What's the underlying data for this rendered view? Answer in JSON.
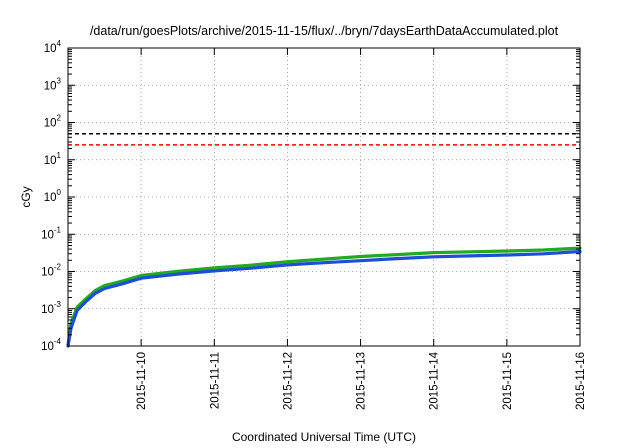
{
  "chart_data": {
    "type": "line",
    "title": "/data/run/goesPlots/archive/2015-11-15/flux/../bryn/7daysEarthDataAccumulated.plot",
    "xlabel": "Coordinated Universal Time (UTC)",
    "ylabel": "cGy",
    "yscale": "log",
    "ylim": [
      0.0001,
      10000
    ],
    "xlim": [
      "2015-11-09T00:00",
      "2015-11-16T00:00"
    ],
    "x_ticks": [
      "2015-11-10",
      "2015-11-11",
      "2015-11-12",
      "2015-11-13",
      "2015-11-14",
      "2015-11-15",
      "2015-11-16"
    ],
    "y_ticks": [
      {
        "base": "10",
        "exp": "-4",
        "value": 0.0001
      },
      {
        "base": "10",
        "exp": "-3",
        "value": 0.001
      },
      {
        "base": "10",
        "exp": "-2",
        "value": 0.01
      },
      {
        "base": "10",
        "exp": "-1",
        "value": 0.1
      },
      {
        "base": "10",
        "exp": "0",
        "value": 1
      },
      {
        "base": "10",
        "exp": "1",
        "value": 10
      },
      {
        "base": "10",
        "exp": "2",
        "value": 100
      },
      {
        "base": "10",
        "exp": "3",
        "value": 1000
      },
      {
        "base": "10",
        "exp": "4",
        "value": 10000
      }
    ],
    "grid": true,
    "thresholds": [
      {
        "value": 50,
        "color": "#000000",
        "style": "dashed"
      },
      {
        "value": 25,
        "color": "#ff0000",
        "style": "dashed"
      }
    ],
    "series": [
      {
        "color": "#22aa22",
        "x": [
          "2015-11-09T00:00",
          "2015-11-09T01:00",
          "2015-11-09T03:00",
          "2015-11-09T06:00",
          "2015-11-09T09:00",
          "2015-11-09T12:00",
          "2015-11-09T18:00",
          "2015-11-10T00:00",
          "2015-11-10T12:00",
          "2015-11-11T00:00",
          "2015-11-11T12:00",
          "2015-11-12T00:00",
          "2015-11-12T12:00",
          "2015-11-13T00:00",
          "2015-11-13T12:00",
          "2015-11-14T00:00",
          "2015-11-14T12:00",
          "2015-11-15T00:00",
          "2015-11-15T12:00",
          "2015-11-16T00:00"
        ],
        "values": [
          0.0001,
          0.0004,
          0.0011,
          0.0019,
          0.0031,
          0.0042,
          0.0056,
          0.0078,
          0.0101,
          0.0125,
          0.0148,
          0.0183,
          0.0215,
          0.0252,
          0.0285,
          0.0322,
          0.0338,
          0.0355,
          0.0378,
          0.0425
        ]
      },
      {
        "color": "#1d4ed8",
        "x": [
          "2015-11-09T00:00",
          "2015-11-09T01:00",
          "2015-11-09T03:00",
          "2015-11-09T06:00",
          "2015-11-09T09:00",
          "2015-11-09T12:00",
          "2015-11-09T18:00",
          "2015-11-10T00:00",
          "2015-11-10T12:00",
          "2015-11-11T00:00",
          "2015-11-11T12:00",
          "2015-11-12T00:00",
          "2015-11-12T12:00",
          "2015-11-13T00:00",
          "2015-11-13T12:00",
          "2015-11-14T00:00",
          "2015-11-14T12:00",
          "2015-11-15T00:00",
          "2015-11-15T12:00",
          "2015-11-16T00:00"
        ],
        "values": [
          0.0001,
          0.0003,
          0.0009,
          0.0016,
          0.0026,
          0.0035,
          0.0047,
          0.0066,
          0.0085,
          0.0104,
          0.0123,
          0.015,
          0.0172,
          0.0195,
          0.0222,
          0.0248,
          0.0262,
          0.0278,
          0.0298,
          0.0345
        ]
      }
    ]
  }
}
